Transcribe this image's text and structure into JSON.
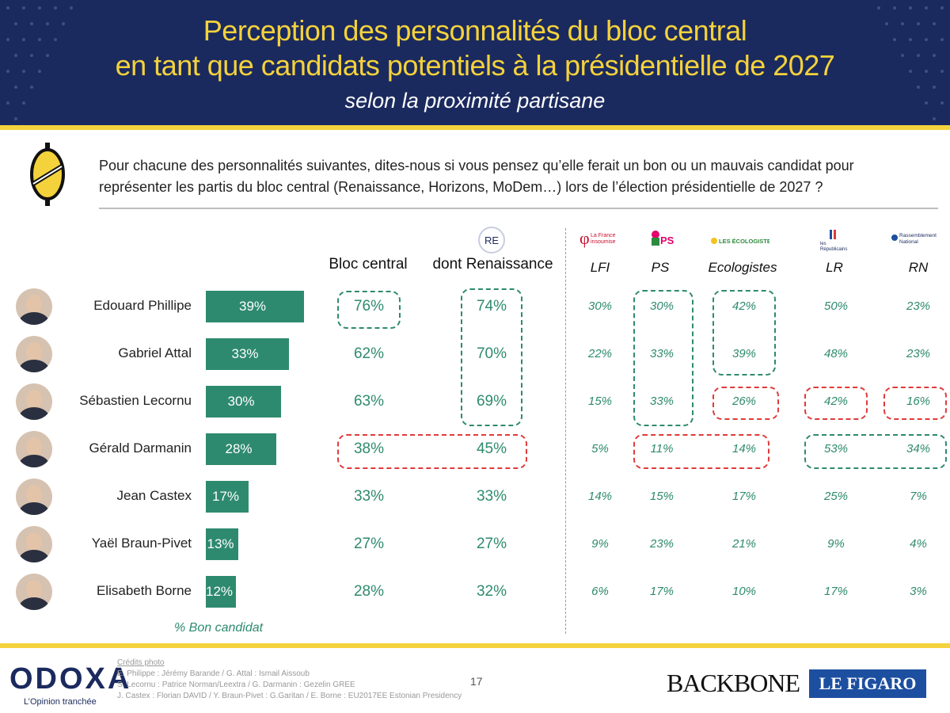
{
  "header": {
    "title_line1": "Perception des personnalités du bloc central",
    "title_line2": "en tant que candidats potentiels à la présidentielle de 2027",
    "subtitle": "selon la proximité partisane"
  },
  "question": {
    "line1": "Pour chacune des personnalités suivantes, dites-nous si vous pensez qu’elle ferait un bon ou un mauvais candidat pour",
    "line2": "représenter les partis du bloc central (Renaissance, Horizons, MoDem…) lors de l’élection présidentielle de 2027 ?"
  },
  "columns": {
    "bloc_central": "Bloc central",
    "renaissance": "dont Renaissance",
    "renaissance_logo": "RE",
    "parties": [
      "LFI",
      "PS",
      "Ecologistes",
      "LR",
      "RN"
    ]
  },
  "party_logos": {
    "lfi": [
      "La France",
      "insoumise"
    ],
    "ps": "PS",
    "eco": "LES ÉCOLOGISTES",
    "lr": [
      "les",
      "Républicains"
    ],
    "rn": [
      "Rassemblement",
      "National"
    ]
  },
  "bar_axis_label": "% Bon candidat",
  "colors": {
    "navy": "#1b2a5e",
    "yellow": "#f4d23c",
    "green": "#2e8a6e",
    "red": "#e03a3a"
  },
  "chart_data": {
    "type": "bar",
    "orientation": "horizontal",
    "categories": [
      "Edouard Phillipe",
      "Gabriel Attal",
      "Sébastien Lecornu",
      "Gérald Darmanin",
      "Jean Castex",
      "Yaël Braun-Pivet",
      "Elisabeth Borne"
    ],
    "series": [
      {
        "values": [
          39,
          33,
          30,
          28,
          17,
          13,
          12
        ],
        "labels": [
          "39%",
          "33%",
          "30%",
          "28%",
          "17%",
          "13%",
          "12%"
        ]
      }
    ],
    "xlabel": "% Bon candidat",
    "xlim": [
      0,
      39
    ]
  },
  "table": {
    "bloc_central": [
      "76%",
      "62%",
      "63%",
      "38%",
      "33%",
      "27%",
      "28%"
    ],
    "renaissance": [
      "74%",
      "70%",
      "69%",
      "45%",
      "33%",
      "27%",
      "32%"
    ],
    "lfi": [
      "30%",
      "22%",
      "15%",
      "5%",
      "14%",
      "9%",
      "6%"
    ],
    "ps": [
      "30%",
      "33%",
      "33%",
      "11%",
      "15%",
      "23%",
      "17%"
    ],
    "eco": [
      "42%",
      "39%",
      "26%",
      "14%",
      "17%",
      "21%",
      "10%"
    ],
    "lr": [
      "50%",
      "48%",
      "42%",
      "53%",
      "25%",
      "9%",
      "17%"
    ],
    "rn": [
      "23%",
      "23%",
      "16%",
      "34%",
      "7%",
      "4%",
      "3%"
    ]
  },
  "footer": {
    "brand": "ODOXA",
    "tagline": "L’Opinion tranchée",
    "credits_title": "Crédits photo",
    "credits": [
      "E. Philippe : Jérémy Barande / G. Attal : Ismail Aissoub",
      "S. Lecornu : Patrice Norman/Leextra / G. Darmanin : Gezelin GREE",
      "J. Castex : Florian DAVID / Y. Braun-Pivet : G.Garitan / E. Borne : EU2017EE Estonian Presidency"
    ],
    "page": "17",
    "partner1": "BACKBONE",
    "partner2": "LE FIGARO"
  }
}
